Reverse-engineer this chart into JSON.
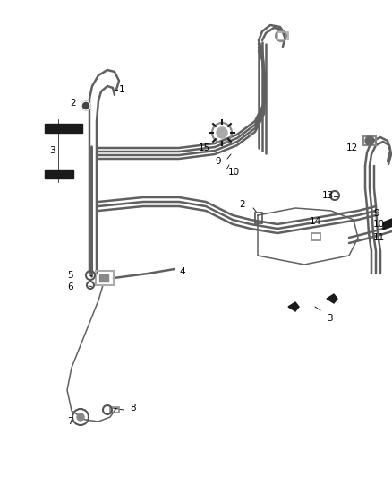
{
  "bg_color": "#ffffff",
  "line_color": "#606060",
  "dark_color": "#1a1a1a",
  "figsize": [
    4.38,
    5.33
  ],
  "dpi": 100,
  "lw_main": 1.8,
  "lw_thin": 1.1,
  "lw_label": 0.6,
  "label_fs": 7.5
}
